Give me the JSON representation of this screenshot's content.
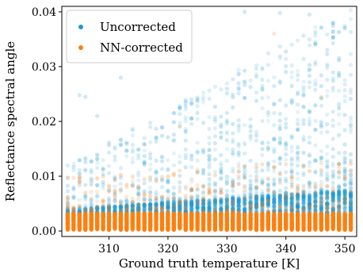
{
  "chart_data": {
    "type": "scatter",
    "title": "",
    "xlabel": "Ground truth temperature [K]",
    "ylabel": "Reflectance spectral angle",
    "xlim": [
      302,
      352
    ],
    "ylim": [
      -0.001,
      0.041
    ],
    "x_ticks": [
      310,
      320,
      330,
      340,
      350
    ],
    "y_ticks": [
      0.0,
      0.01,
      0.02,
      0.03,
      0.04
    ],
    "y_tick_labels": [
      "0.00",
      "0.01",
      "0.02",
      "0.03",
      "0.04"
    ],
    "grid": false,
    "legend_position": "top-left",
    "x_sampling": {
      "start": 303,
      "end": 351,
      "step": 1
    },
    "series": [
      {
        "name": "Uncorrected",
        "color": "#1f9ad6",
        "dense_band": {
          "y_low": 0.0005,
          "y_high_at_x_min": 0.004,
          "y_high_at_x_max": 0.0075
        },
        "sparse_envelope": {
          "y_max_at_x_min": 0.012,
          "y_max_at_x_max": 0.041
        },
        "outliers": [
          {
            "x": 305,
            "y": 0.0248
          },
          {
            "x": 306,
            "y": 0.0245
          },
          {
            "x": 308,
            "y": 0.021
          },
          {
            "x": 312,
            "y": 0.028
          },
          {
            "x": 333,
            "y": 0.04
          },
          {
            "x": 339,
            "y": 0.0398
          },
          {
            "x": 344,
            "y": 0.0395
          },
          {
            "x": 348,
            "y": 0.038
          },
          {
            "x": 350,
            "y": 0.037
          }
        ]
      },
      {
        "name": "NN-corrected",
        "color": "#ff7f0e",
        "dense_band": {
          "y_low": 0.0002,
          "y_high": 0.0032
        },
        "sparse_envelope": {
          "y_max_at_x_min": 0.0105,
          "y_max_at_x_max": 0.013
        },
        "outliers": [
          {
            "x": 303,
            "y": 0.0098
          },
          {
            "x": 304,
            "y": 0.0097
          },
          {
            "x": 305,
            "y": 0.0099
          },
          {
            "x": 322,
            "y": 0.019
          },
          {
            "x": 338,
            "y": 0.036
          },
          {
            "x": 346,
            "y": 0.0245
          }
        ]
      }
    ]
  }
}
